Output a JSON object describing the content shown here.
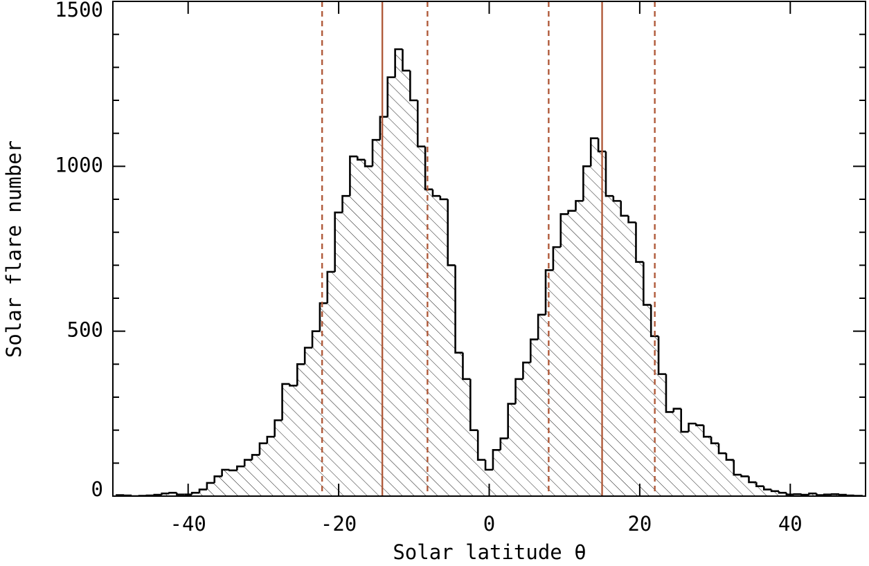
{
  "chart_data": {
    "type": "histogram",
    "xlabel": "Solar latitude θ",
    "ylabel": "Solar flare number",
    "bins": [
      -49.5,
      -48.5,
      -47.5,
      -46.5,
      -45.5,
      -44.5,
      -43.5,
      -42.5,
      -41.5,
      -40.5,
      -39.5,
      -38.5,
      -37.5,
      -36.5,
      -35.5,
      -34.5,
      -33.5,
      -32.5,
      -31.5,
      -30.5,
      -29.5,
      -28.5,
      -27.5,
      -26.5,
      -25.5,
      -24.5,
      -23.5,
      -22.5,
      -21.5,
      -20.5,
      -19.5,
      -18.5,
      -17.5,
      -16.5,
      -15.5,
      -14.5,
      -13.5,
      -12.5,
      -11.5,
      -10.5,
      -9.5,
      -8.5,
      -7.5,
      -6.5,
      -5.5,
      -4.5,
      -3.5,
      -2.5,
      -1.5,
      -0.5,
      0.5,
      1.5,
      2.5,
      3.5,
      4.5,
      5.5,
      6.5,
      7.5,
      8.5,
      9.5,
      10.5,
      11.5,
      12.5,
      13.5,
      14.5,
      15.5,
      16.5,
      17.5,
      18.5,
      19.5,
      20.5,
      21.5,
      22.5,
      23.5,
      24.5,
      25.5,
      26.5,
      27.5,
      28.5,
      29.5,
      30.5,
      31.5,
      32.5,
      33.5,
      34.5,
      35.5,
      36.5,
      37.5,
      38.5,
      39.5,
      40.5,
      41.5,
      42.5,
      43.5,
      44.5,
      45.5,
      46.5,
      47.5,
      48.5,
      49.5
    ],
    "values": [
      3,
      2,
      0,
      1,
      2,
      4,
      8,
      10,
      5,
      5,
      10,
      20,
      40,
      60,
      80,
      78,
      90,
      110,
      125,
      160,
      180,
      230,
      340,
      335,
      400,
      450,
      500,
      585,
      680,
      860,
      910,
      1030,
      1020,
      1000,
      1080,
      1150,
      1270,
      1355,
      1290,
      1200,
      1060,
      930,
      910,
      900,
      700,
      435,
      355,
      200,
      110,
      80,
      140,
      175,
      280,
      355,
      405,
      475,
      550,
      685,
      755,
      855,
      865,
      895,
      1000,
      1085,
      1045,
      910,
      895,
      850,
      830,
      710,
      580,
      485,
      370,
      255,
      265,
      195,
      220,
      215,
      180,
      160,
      130,
      110,
      65,
      60,
      42,
      30,
      20,
      15,
      10,
      5,
      6,
      4,
      8,
      3,
      5,
      6,
      4,
      2,
      1
    ],
    "color": "#000000",
    "hatch": true,
    "xlim": [
      -50,
      50
    ],
    "xticks": [
      -40,
      -20,
      0,
      20,
      40
    ],
    "ylim": [
      0,
      1500
    ],
    "yticks": [
      0,
      500,
      1000,
      1500
    ],
    "yminorticks": [
      100,
      200,
      300,
      400,
      600,
      700,
      800,
      900,
      1100,
      1200,
      1300,
      1400
    ],
    "vlines": [
      {
        "x": -14.2,
        "style": "solid",
        "color": "#b05a3a"
      },
      {
        "x": 15,
        "style": "solid",
        "color": "#b05a3a"
      },
      {
        "x": -22.2,
        "style": "dashed",
        "color": "#b05a3a"
      },
      {
        "x": -8.2,
        "style": "dashed",
        "color": "#b05a3a"
      },
      {
        "x": 7.9,
        "style": "dashed",
        "color": "#b05a3a"
      },
      {
        "x": 22,
        "style": "dashed",
        "color": "#b05a3a"
      }
    ]
  }
}
